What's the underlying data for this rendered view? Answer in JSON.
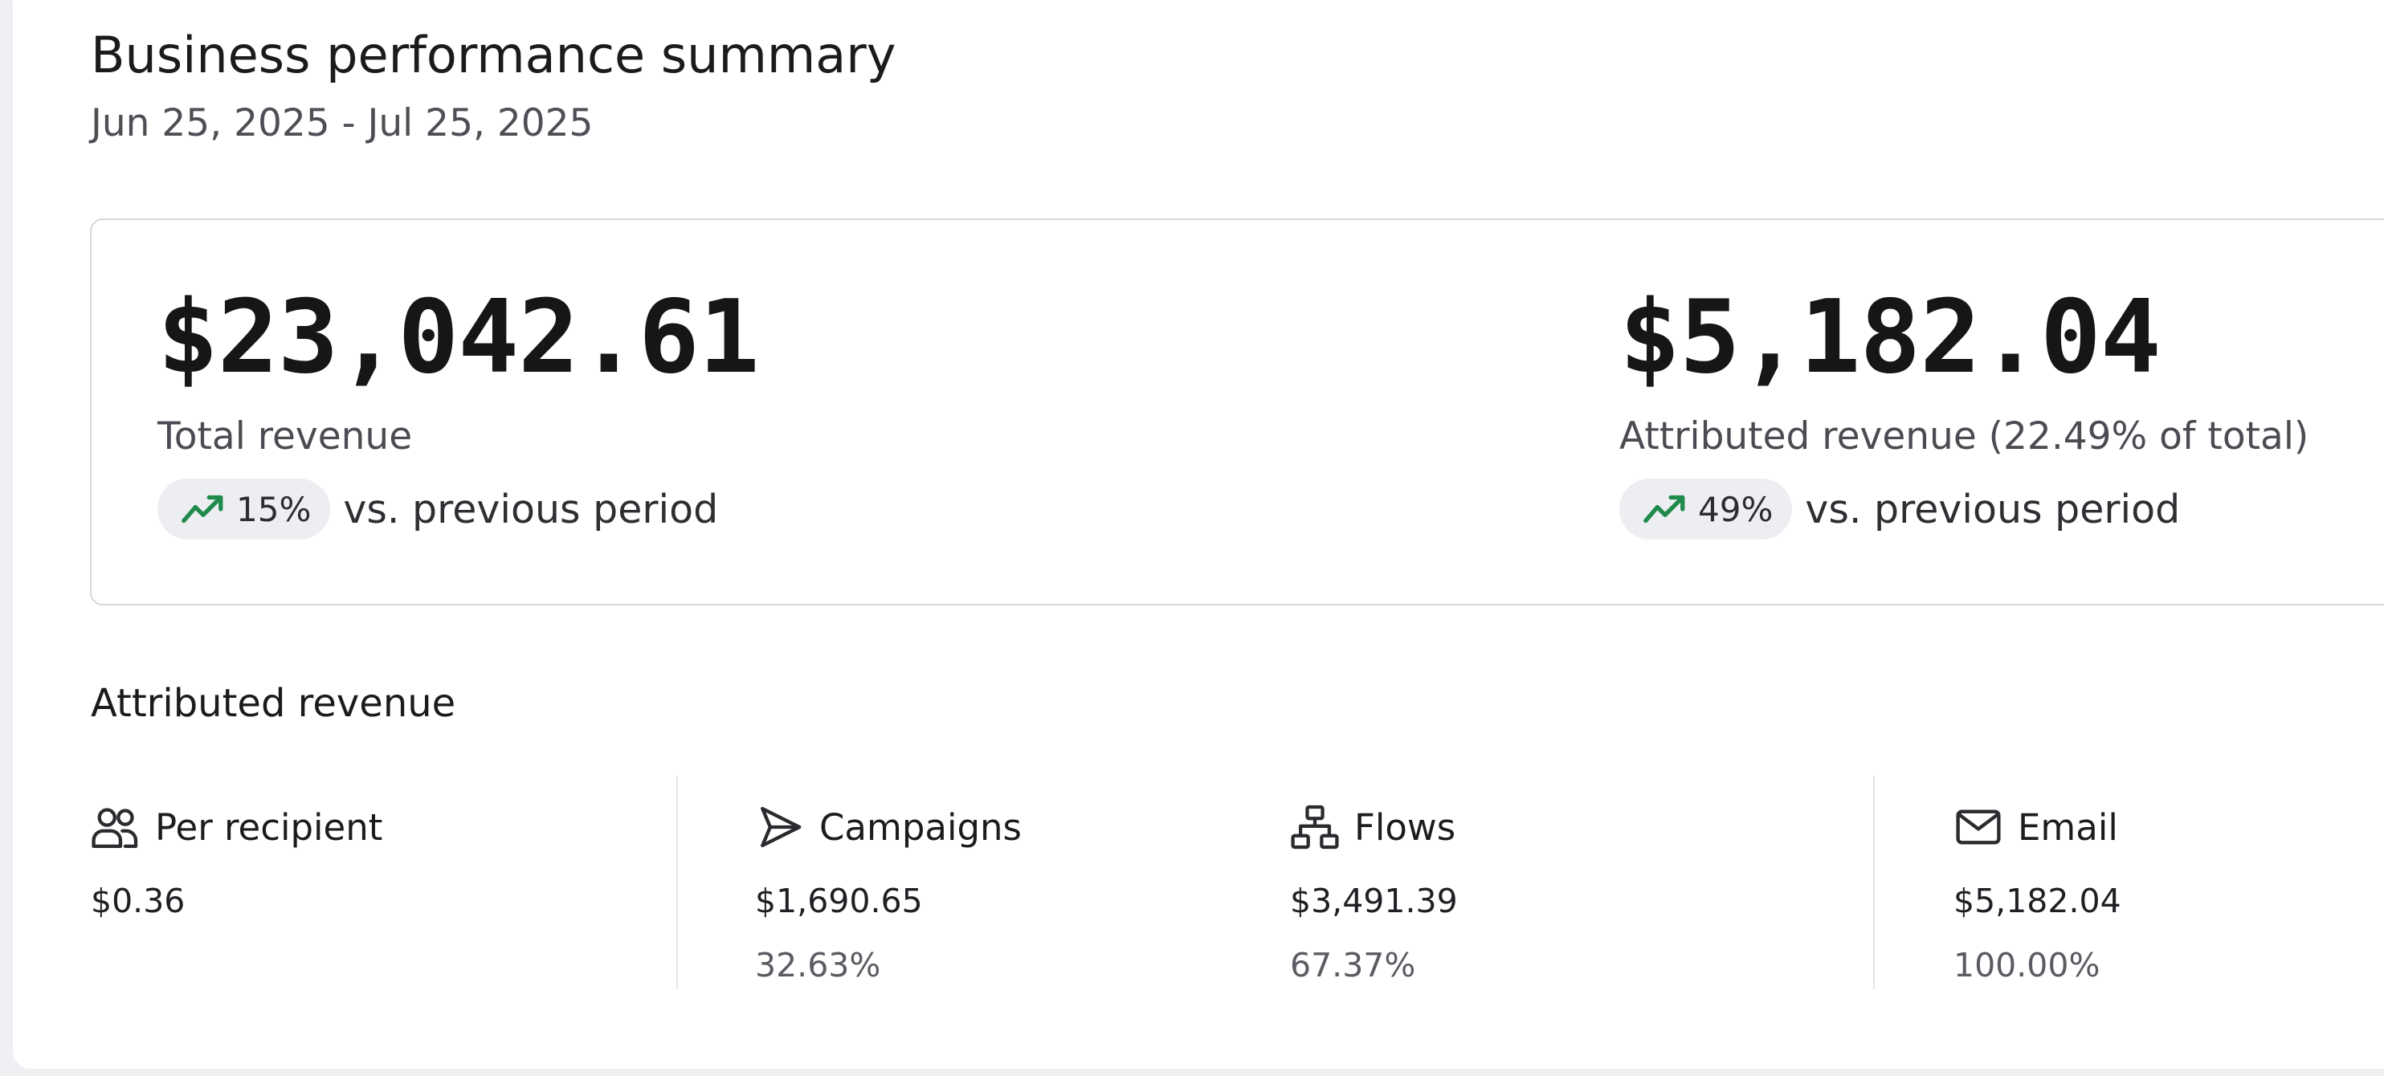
{
  "header": {
    "title": "Business performance summary",
    "date_range": "Jun 25, 2025 - Jul 25, 2025"
  },
  "metrics": [
    {
      "value": "$23,042.61",
      "label": "Total revenue",
      "change": "15%",
      "change_suffix": "vs. previous period",
      "change_icon": "trend-up-icon"
    },
    {
      "value": "$5,182.04",
      "label": "Attributed revenue (22.49% of total)",
      "change": "49%",
      "change_suffix": "vs. previous period",
      "change_icon": "trend-up-icon"
    }
  ],
  "attributed": {
    "title": "Attributed revenue",
    "items": [
      {
        "icon": "users-icon",
        "label": "Per recipient",
        "value": "$0.36"
      },
      {
        "icon": "send-icon",
        "label": "Campaigns",
        "value": "$1,690.65",
        "percent": "32.63%"
      },
      {
        "icon": "flows-icon",
        "label": "Flows",
        "value": "$3,491.39",
        "percent": "67.37%"
      },
      {
        "icon": "mail-icon",
        "label": "Email",
        "value": "$5,182.04",
        "percent": "100.00%"
      }
    ]
  },
  "colors": {
    "trend_up": "#1f8a4c",
    "accent_text": "#1b1b1b",
    "muted_text": "#4d4f55"
  }
}
